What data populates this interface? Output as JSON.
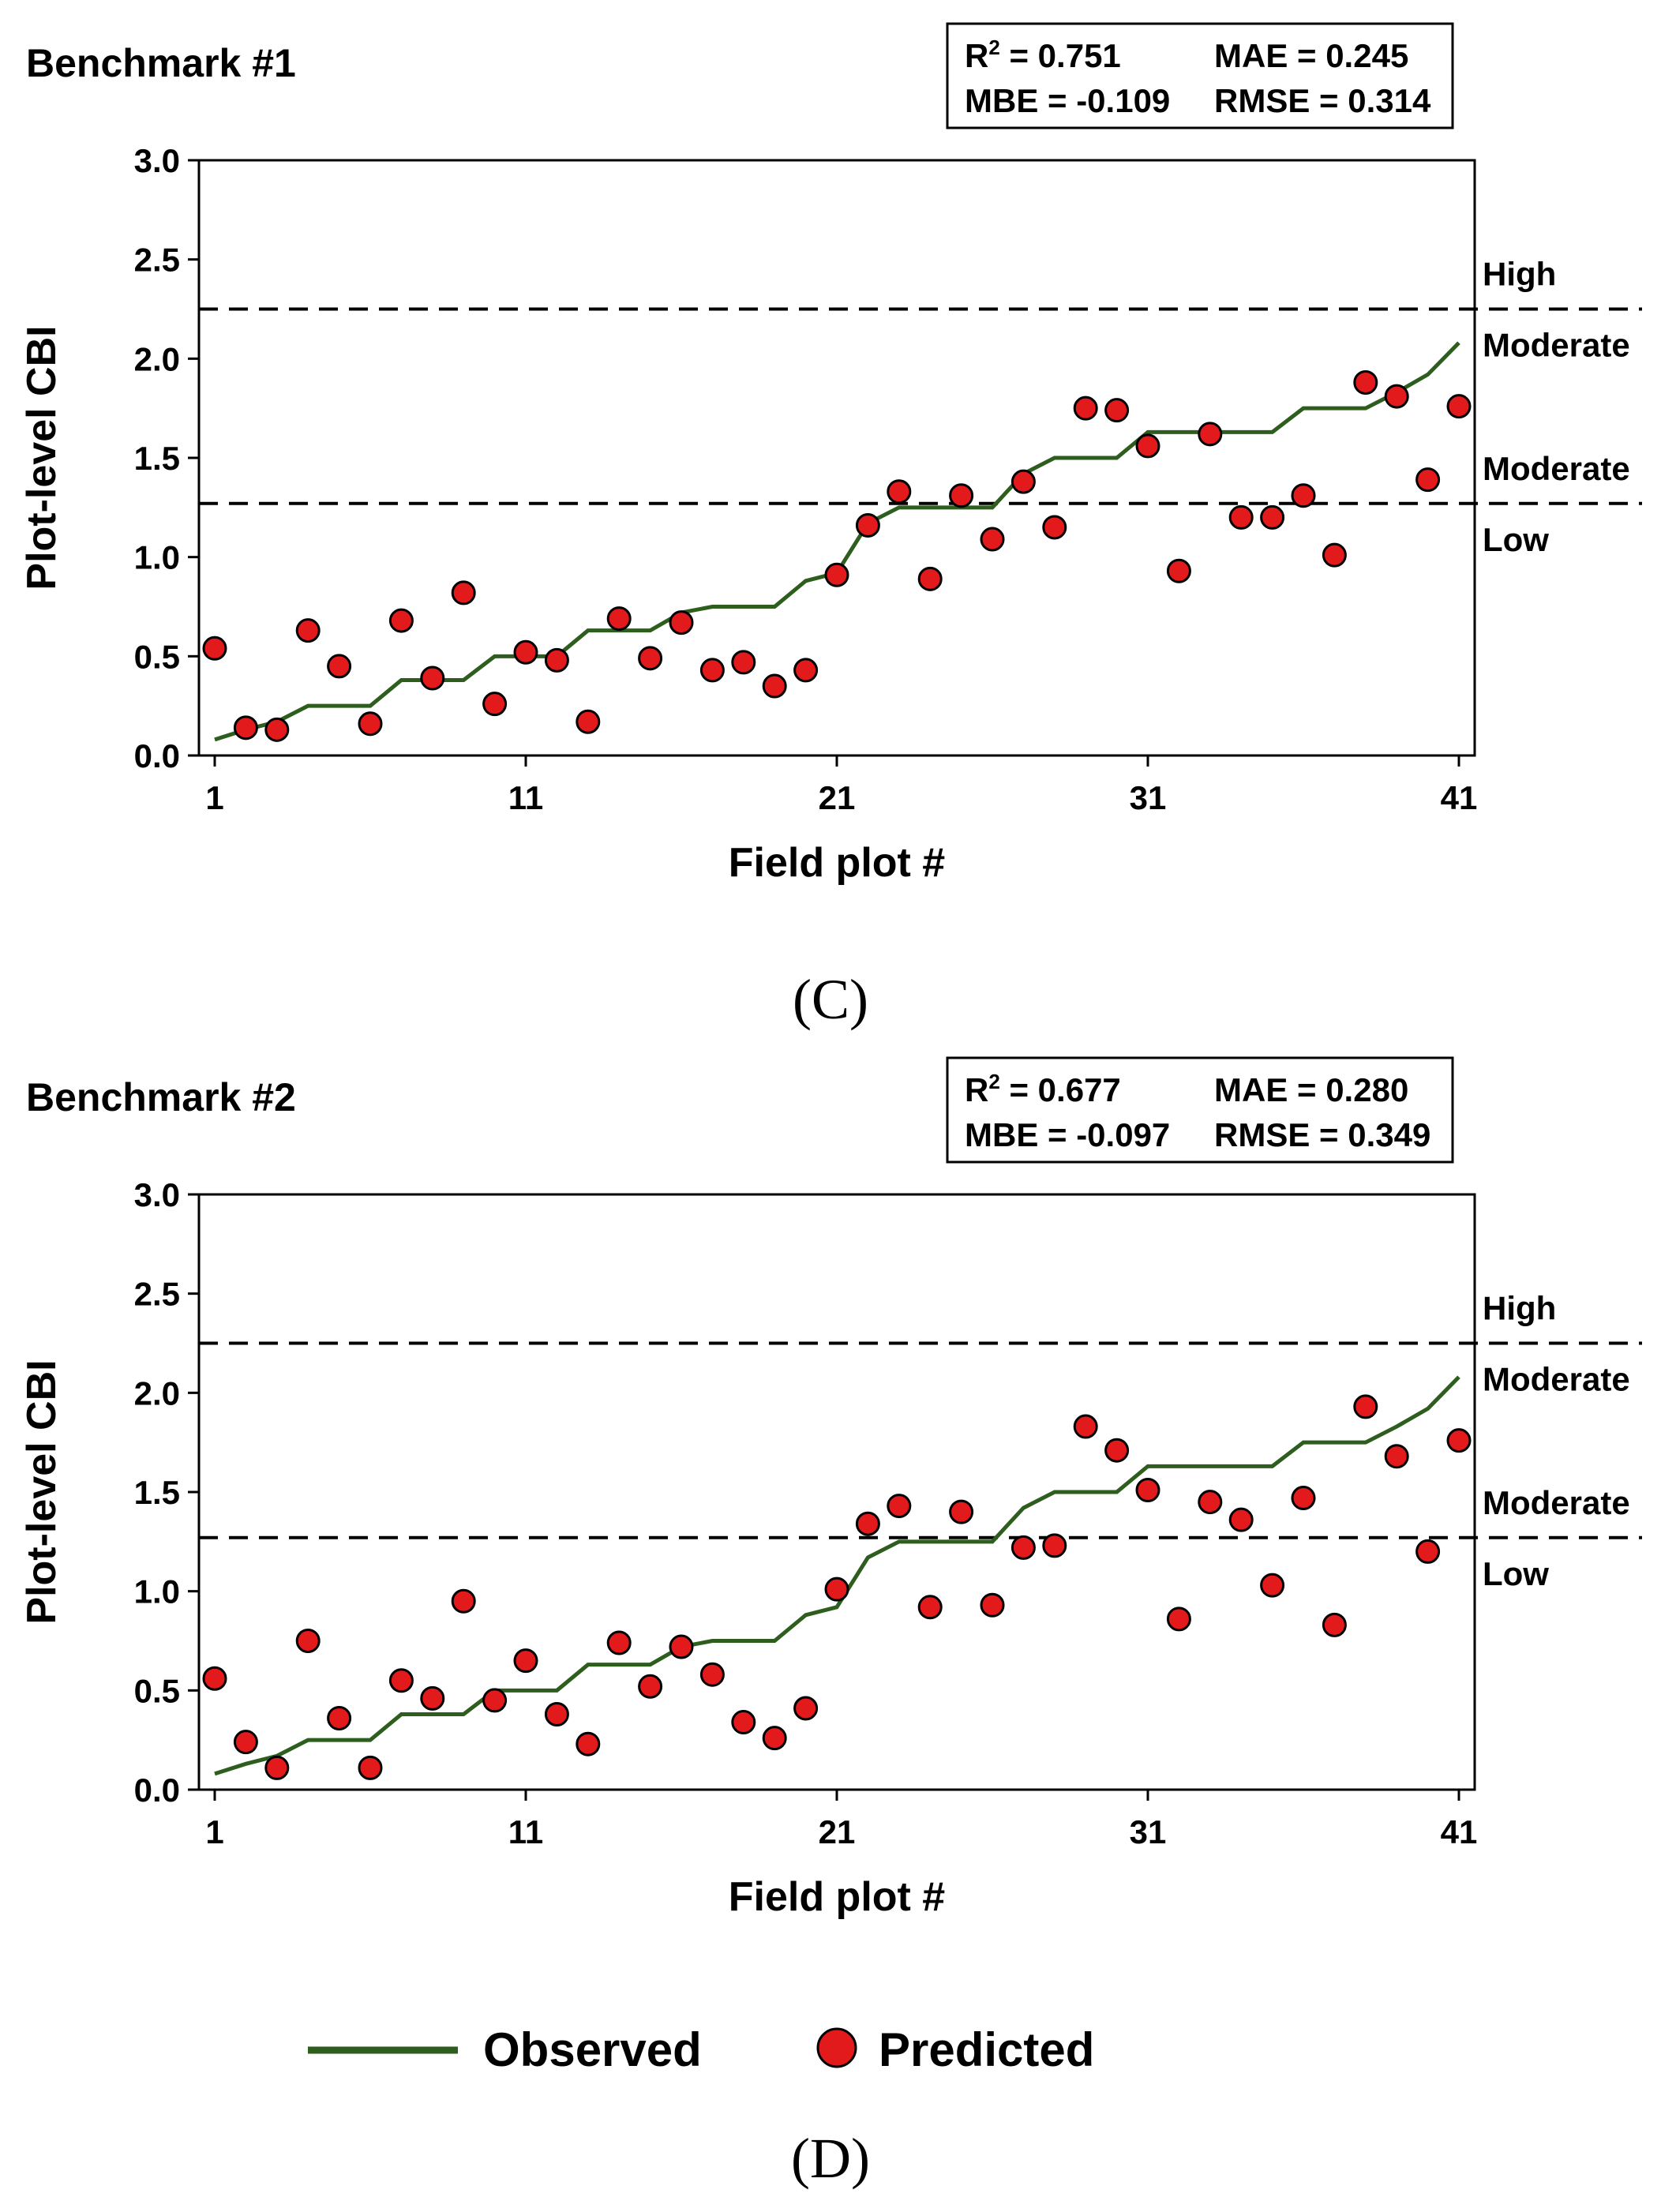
{
  "panel_labels": [
    "(C)",
    "(D)"
  ],
  "legend": {
    "observed_label": "Observed",
    "predicted_label": "Predicted"
  },
  "colors": {
    "observed_line": "#2e5e1e",
    "predicted_fill": "#e31a1c",
    "marker_edge": "#000000",
    "axis": "#000000",
    "dashed": "#000000"
  },
  "chart_data": [
    {
      "type": "line+scatter",
      "title": "Benchmark #1",
      "xlabel": "Field plot #",
      "ylabel": "Plot-level CBI",
      "xlim": [
        1,
        41
      ],
      "ylim": [
        0,
        3
      ],
      "xticks": [
        1,
        11,
        21,
        31,
        41
      ],
      "yticks": [
        "0.0",
        "0.5",
        "1.0",
        "1.5",
        "2.0",
        "2.5",
        "3.0"
      ],
      "stats": {
        "r2_label": "R",
        "r2_sup": "2",
        "r2": " = 0.751",
        "mae": "MAE = 0.245",
        "mbe": "MBE = -0.109",
        "rmse": "RMSE = 0.314"
      },
      "thresholds": [
        {
          "y": 2.25,
          "above": "High",
          "below": "Moderate"
        },
        {
          "y": 1.27,
          "above": "Moderate",
          "below": "Low"
        }
      ],
      "observed": {
        "name": "Observed",
        "x": [
          1,
          2,
          3,
          4,
          5,
          6,
          7,
          8,
          9,
          10,
          11,
          12,
          13,
          14,
          15,
          16,
          17,
          18,
          19,
          20,
          21,
          22,
          23,
          24,
          25,
          26,
          27,
          28,
          29,
          30,
          31,
          32,
          33,
          34,
          35,
          36,
          37,
          38,
          39,
          40,
          41
        ],
        "y": [
          0.08,
          0.13,
          0.17,
          0.25,
          0.25,
          0.25,
          0.38,
          0.38,
          0.38,
          0.5,
          0.5,
          0.5,
          0.63,
          0.63,
          0.63,
          0.72,
          0.75,
          0.75,
          0.75,
          0.88,
          0.92,
          1.17,
          1.25,
          1.25,
          1.25,
          1.25,
          1.42,
          1.5,
          1.5,
          1.5,
          1.63,
          1.63,
          1.63,
          1.63,
          1.63,
          1.75,
          1.75,
          1.75,
          1.83,
          1.92,
          2.08
        ]
      },
      "predicted": {
        "name": "Predicted",
        "x": [
          1,
          2,
          3,
          4,
          5,
          6,
          7,
          8,
          9,
          10,
          11,
          12,
          13,
          14,
          15,
          16,
          17,
          18,
          19,
          20,
          21,
          22,
          23,
          24,
          25,
          26,
          27,
          28,
          29,
          30,
          31,
          32,
          33,
          34,
          35,
          36,
          37,
          38,
          39,
          40,
          41
        ],
        "y": [
          0.54,
          0.14,
          0.13,
          0.63,
          0.45,
          0.16,
          0.68,
          0.39,
          0.82,
          0.26,
          0.52,
          0.48,
          0.17,
          0.69,
          0.49,
          0.67,
          0.43,
          0.47,
          0.35,
          0.43,
          0.91,
          1.16,
          1.33,
          0.89,
          1.31,
          1.09,
          1.38,
          1.15,
          1.75,
          1.74,
          1.56,
          0.93,
          1.62,
          1.2,
          1.2,
          1.31,
          1.01,
          1.88,
          1.81,
          1.39,
          1.76
        ]
      }
    },
    {
      "type": "line+scatter",
      "title": "Benchmark #2",
      "xlabel": "Field plot #",
      "ylabel": "Plot-level CBI",
      "xlim": [
        1,
        41
      ],
      "ylim": [
        0,
        3
      ],
      "xticks": [
        1,
        11,
        21,
        31,
        41
      ],
      "yticks": [
        "0.0",
        "0.5",
        "1.0",
        "1.5",
        "2.0",
        "2.5",
        "3.0"
      ],
      "stats": {
        "r2_label": "R",
        "r2_sup": "2",
        "r2": " = 0.677",
        "mae": "MAE = 0.280",
        "mbe": "MBE = -0.097",
        "rmse": "RMSE = 0.349"
      },
      "thresholds": [
        {
          "y": 2.25,
          "above": "High",
          "below": "Moderate"
        },
        {
          "y": 1.27,
          "above": "Moderate",
          "below": "Low"
        }
      ],
      "observed": {
        "name": "Observed",
        "x": [
          1,
          2,
          3,
          4,
          5,
          6,
          7,
          8,
          9,
          10,
          11,
          12,
          13,
          14,
          15,
          16,
          17,
          18,
          19,
          20,
          21,
          22,
          23,
          24,
          25,
          26,
          27,
          28,
          29,
          30,
          31,
          32,
          33,
          34,
          35,
          36,
          37,
          38,
          39,
          40,
          41
        ],
        "y": [
          0.08,
          0.13,
          0.17,
          0.25,
          0.25,
          0.25,
          0.38,
          0.38,
          0.38,
          0.5,
          0.5,
          0.5,
          0.63,
          0.63,
          0.63,
          0.72,
          0.75,
          0.75,
          0.75,
          0.88,
          0.92,
          1.17,
          1.25,
          1.25,
          1.25,
          1.25,
          1.42,
          1.5,
          1.5,
          1.5,
          1.63,
          1.63,
          1.63,
          1.63,
          1.63,
          1.75,
          1.75,
          1.75,
          1.83,
          1.92,
          2.08
        ]
      },
      "predicted": {
        "name": "Predicted",
        "x": [
          1,
          2,
          3,
          4,
          5,
          6,
          7,
          8,
          9,
          10,
          11,
          12,
          13,
          14,
          15,
          16,
          17,
          18,
          19,
          20,
          21,
          22,
          23,
          24,
          25,
          26,
          27,
          28,
          29,
          30,
          31,
          32,
          33,
          34,
          35,
          36,
          37,
          38,
          39,
          40,
          41
        ],
        "y": [
          0.56,
          0.24,
          0.11,
          0.75,
          0.36,
          0.11,
          0.55,
          0.46,
          0.95,
          0.45,
          0.65,
          0.38,
          0.23,
          0.74,
          0.52,
          0.72,
          0.58,
          0.34,
          0.26,
          0.41,
          1.01,
          1.34,
          1.43,
          0.92,
          1.4,
          0.93,
          1.22,
          1.23,
          1.83,
          1.71,
          1.51,
          0.86,
          1.45,
          1.36,
          1.03,
          1.47,
          0.83,
          1.93,
          1.68,
          1.2,
          1.76
        ]
      }
    }
  ]
}
